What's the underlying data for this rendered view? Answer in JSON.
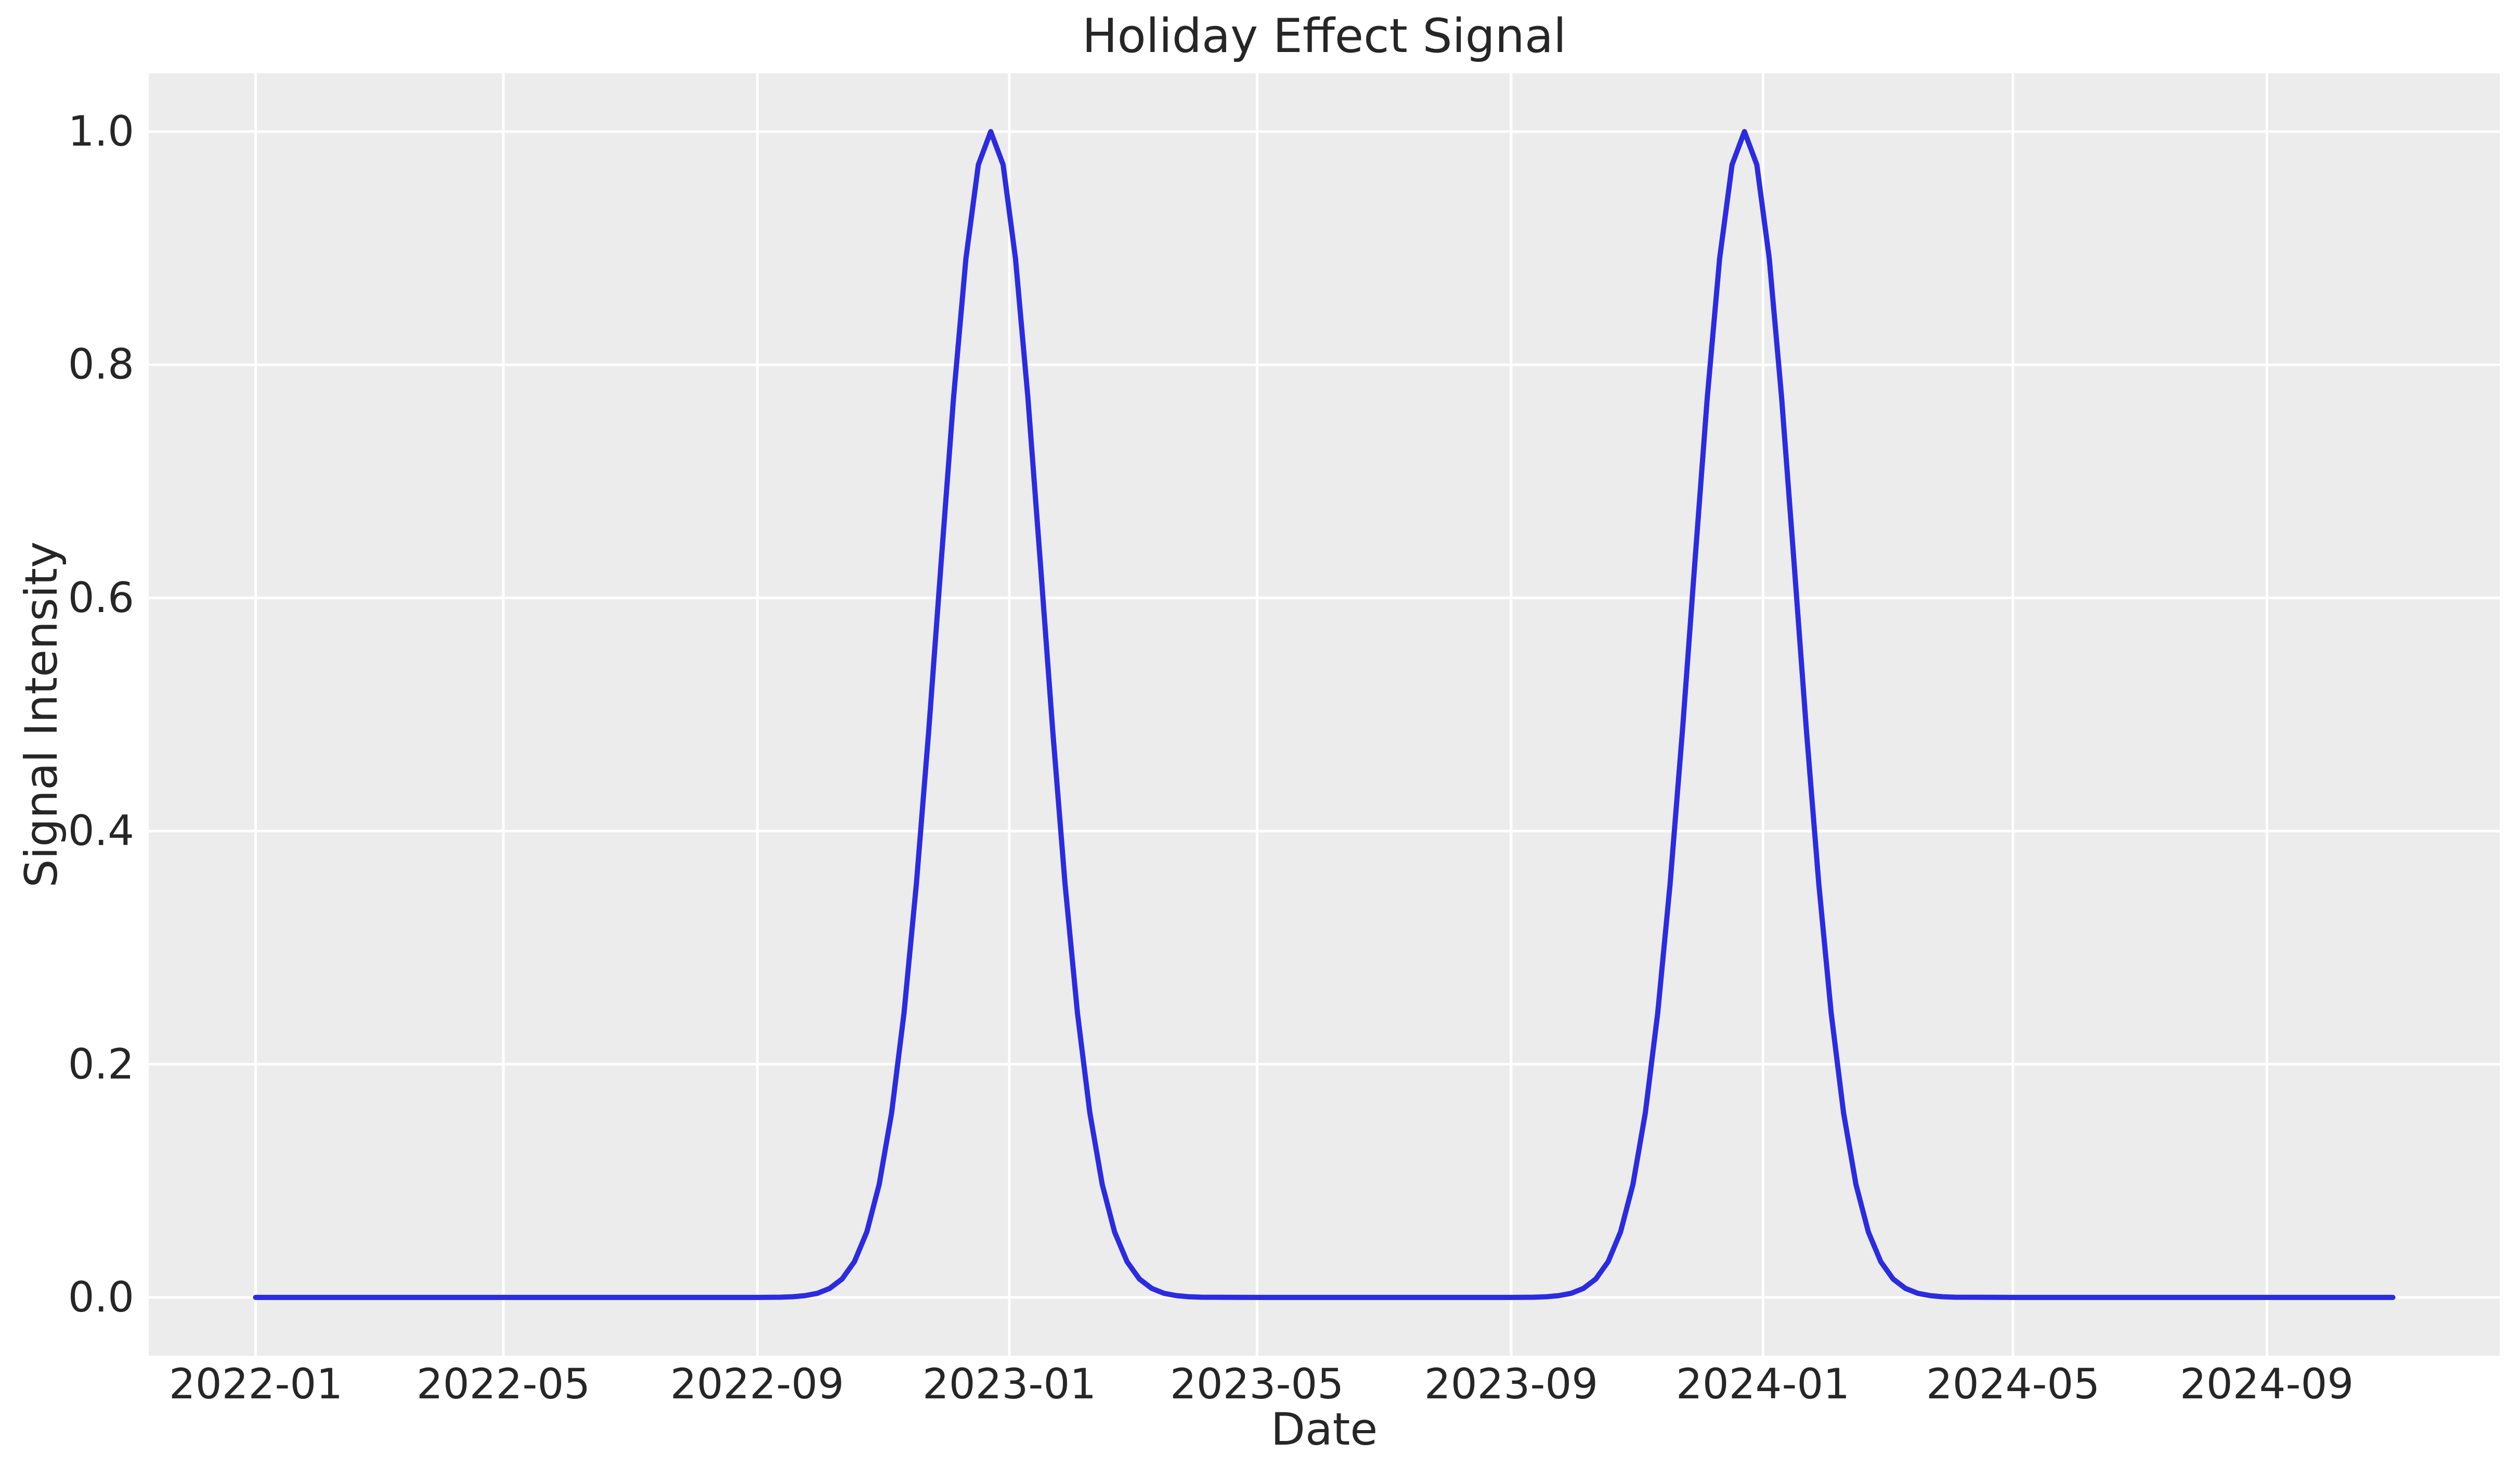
{
  "figure": {
    "background": "#ffffff",
    "panel_background": "#ececec",
    "gridline_color": "#ffffff",
    "text_color": "#262626"
  },
  "chart_data": {
    "type": "line",
    "title": "Holiday Effect Signal",
    "xlabel": "Date",
    "ylabel": "Signal Intensity",
    "line_color": "#2b2be2",
    "grid": true,
    "legend": "none",
    "x_range": [
      "2022-01-01",
      "2024-11-01"
    ],
    "ylim": [
      -0.05,
      1.05
    ],
    "yticks": [
      0.0,
      0.2,
      0.4,
      0.6,
      0.8,
      1.0
    ],
    "ytick_labels": [
      "0.0",
      "0.2",
      "0.4",
      "0.6",
      "0.8",
      "1.0"
    ],
    "xticks": [
      {
        "date": "2022-01-01",
        "label": "2022-01"
      },
      {
        "date": "2022-05-01",
        "label": "2022-05"
      },
      {
        "date": "2022-09-01",
        "label": "2022-09"
      },
      {
        "date": "2023-01-01",
        "label": "2023-01"
      },
      {
        "date": "2023-05-01",
        "label": "2023-05"
      },
      {
        "date": "2023-09-01",
        "label": "2023-09"
      },
      {
        "date": "2024-01-01",
        "label": "2024-01"
      },
      {
        "date": "2024-05-01",
        "label": "2024-05"
      },
      {
        "date": "2024-09-01",
        "label": "2024-09"
      }
    ],
    "peaks": [
      {
        "center": "2022-12-23",
        "amplitude": 1.0,
        "sigma_days": 25
      },
      {
        "center": "2023-12-23",
        "amplitude": 1.0,
        "sigma_days": 25
      }
    ],
    "series": [
      {
        "name": "holiday_effect",
        "points": [
          [
            "2022-01-01",
            0
          ],
          [
            "2022-02-01",
            0
          ],
          [
            "2022-03-15",
            0
          ],
          [
            "2022-05-01",
            0
          ],
          [
            "2022-06-15",
            0
          ],
          [
            "2022-08-01",
            0
          ],
          [
            "2022-09-01",
            0
          ],
          [
            "2022-09-12",
            0.0002
          ],
          [
            "2022-09-18",
            0.0006
          ],
          [
            "2022-09-24",
            0.0015
          ],
          [
            "2022-09-30",
            0.0035
          ],
          [
            "2022-10-06",
            0.0077
          ],
          [
            "2022-10-12",
            0.0158
          ],
          [
            "2022-10-18",
            0.0307
          ],
          [
            "2022-10-24",
            0.0561
          ],
          [
            "2022-10-30",
            0.097
          ],
          [
            "2022-11-05",
            0.1583
          ],
          [
            "2022-11-11",
            0.2438
          ],
          [
            "2022-11-17",
            0.3546
          ],
          [
            "2022-11-23",
            0.4868
          ],
          [
            "2022-11-29",
            0.6308
          ],
          [
            "2022-12-05",
            0.7717
          ],
          [
            "2022-12-11",
            0.8912
          ],
          [
            "2022-12-17",
            0.9716
          ],
          [
            "2022-12-23",
            1.0
          ],
          [
            "2022-12-29",
            0.9716
          ],
          [
            "2023-01-04",
            0.8912
          ],
          [
            "2023-01-10",
            0.7717
          ],
          [
            "2023-01-16",
            0.6308
          ],
          [
            "2023-01-22",
            0.4868
          ],
          [
            "2023-01-28",
            0.3546
          ],
          [
            "2023-02-03",
            0.2438
          ],
          [
            "2023-02-09",
            0.1583
          ],
          [
            "2023-02-15",
            0.097
          ],
          [
            "2023-02-21",
            0.0561
          ],
          [
            "2023-02-27",
            0.0307
          ],
          [
            "2023-03-05",
            0.0158
          ],
          [
            "2023-03-11",
            0.0077
          ],
          [
            "2023-03-17",
            0.0035
          ],
          [
            "2023-03-23",
            0.0015
          ],
          [
            "2023-03-29",
            0.0006
          ],
          [
            "2023-04-04",
            0.0002
          ],
          [
            "2023-05-01",
            0
          ],
          [
            "2023-06-15",
            0
          ],
          [
            "2023-08-01",
            0
          ],
          [
            "2023-09-01",
            0
          ],
          [
            "2023-09-12",
            0.0002
          ],
          [
            "2023-09-18",
            0.0006
          ],
          [
            "2023-09-24",
            0.0015
          ],
          [
            "2023-09-30",
            0.0035
          ],
          [
            "2023-10-06",
            0.0077
          ],
          [
            "2023-10-12",
            0.0158
          ],
          [
            "2023-10-18",
            0.0307
          ],
          [
            "2023-10-24",
            0.0561
          ],
          [
            "2023-10-30",
            0.097
          ],
          [
            "2023-11-05",
            0.1583
          ],
          [
            "2023-11-11",
            0.2438
          ],
          [
            "2023-11-17",
            0.3546
          ],
          [
            "2023-11-23",
            0.4868
          ],
          [
            "2023-11-29",
            0.6308
          ],
          [
            "2023-12-05",
            0.7717
          ],
          [
            "2023-12-11",
            0.8912
          ],
          [
            "2023-12-17",
            0.9716
          ],
          [
            "2023-12-23",
            1.0
          ],
          [
            "2023-12-29",
            0.9716
          ],
          [
            "2024-01-04",
            0.8912
          ],
          [
            "2024-01-10",
            0.7717
          ],
          [
            "2024-01-16",
            0.6308
          ],
          [
            "2024-01-22",
            0.4868
          ],
          [
            "2024-01-28",
            0.3546
          ],
          [
            "2024-02-03",
            0.2438
          ],
          [
            "2024-02-09",
            0.1583
          ],
          [
            "2024-02-15",
            0.097
          ],
          [
            "2024-02-21",
            0.0561
          ],
          [
            "2024-02-27",
            0.0307
          ],
          [
            "2024-03-04",
            0.0158
          ],
          [
            "2024-03-10",
            0.0077
          ],
          [
            "2024-03-16",
            0.0035
          ],
          [
            "2024-03-22",
            0.0015
          ],
          [
            "2024-03-28",
            0.0006
          ],
          [
            "2024-04-03",
            0.0002
          ],
          [
            "2024-05-01",
            0
          ],
          [
            "2024-06-15",
            0
          ],
          [
            "2024-08-01",
            0
          ],
          [
            "2024-09-15",
            0
          ],
          [
            "2024-11-01",
            0
          ]
        ]
      }
    ]
  }
}
